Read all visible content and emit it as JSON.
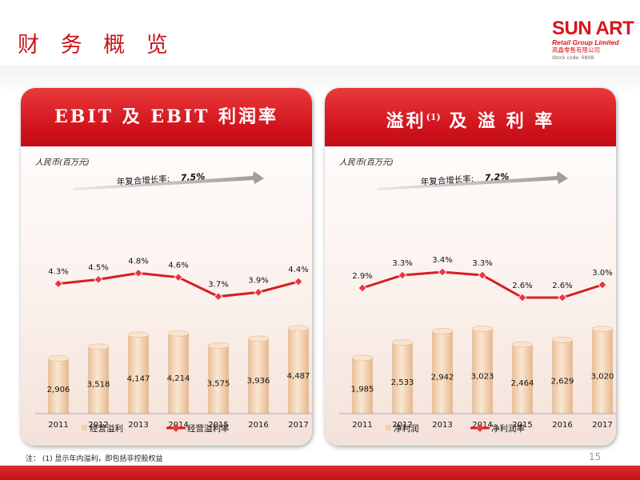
{
  "page": {
    "title": "财 务 概 览",
    "footnote": "注： (1) 显示年内溢利，即包括非控股权益",
    "page_number": "15"
  },
  "logo": {
    "name": "SUN ART",
    "subtitle": "Retail Group Limited",
    "chinese": "高鑫零售有限公司",
    "stock_code": "Stock code: 6808"
  },
  "colors": {
    "accent": "#d0121b",
    "line": "#d81e24",
    "bar": "#f1cfae"
  },
  "chart_data": [
    {
      "type": "bar",
      "header": "EBIT 及 EBIT 利润率",
      "unit_label": "人民币(百万元)",
      "cagr_label": "年复合增长率:",
      "cagr_value": "7.5%",
      "categories": [
        "2011",
        "2012",
        "2013",
        "2014",
        "2015",
        "2016",
        "2017"
      ],
      "series": [
        {
          "name": "经营溢利",
          "kind": "bar",
          "values": [
            2906,
            3518,
            4147,
            4214,
            3575,
            3936,
            4487
          ],
          "labels": [
            "2,906",
            "3,518",
            "4,147",
            "4,214",
            "3,575",
            "3,936",
            "4,487"
          ]
        },
        {
          "name": "经营溢利率",
          "kind": "line",
          "values": [
            4.3,
            4.5,
            4.8,
            4.6,
            3.7,
            3.9,
            4.4
          ],
          "labels": [
            "4.3%",
            "4.5%",
            "4.8%",
            "4.6%",
            "3.7%",
            "3.9%",
            "4.4%"
          ]
        }
      ],
      "ylim": [
        0,
        4500
      ],
      "line_ylim": [
        3.5,
        5.0
      ]
    },
    {
      "type": "bar",
      "header": "溢利",
      "header_sup": "(1)",
      "header_rest": "及 溢 利 率",
      "unit_label": "人民币(百万元)",
      "cagr_label": "年复合增长率:",
      "cagr_value": "7.2%",
      "categories": [
        "2011",
        "2012",
        "2013",
        "2014",
        "2015",
        "2016",
        "2017"
      ],
      "series": [
        {
          "name": "净利润",
          "kind": "bar",
          "values": [
            1985,
            2533,
            2942,
            3023,
            2464,
            2629,
            3020
          ],
          "labels": [
            "1,985",
            "2,533",
            "2,942",
            "3,023",
            "2,464",
            "2,629",
            "3,020"
          ]
        },
        {
          "name": "净利润率",
          "kind": "line",
          "values": [
            2.9,
            3.3,
            3.4,
            3.3,
            2.6,
            2.6,
            3.0
          ],
          "labels": [
            "2.9%",
            "3.3%",
            "3.4%",
            "3.3%",
            "2.6%",
            "2.6%",
            "3.0%"
          ]
        }
      ],
      "ylim": [
        0,
        3050
      ],
      "line_ylim": [
        2.5,
        3.5
      ]
    }
  ]
}
